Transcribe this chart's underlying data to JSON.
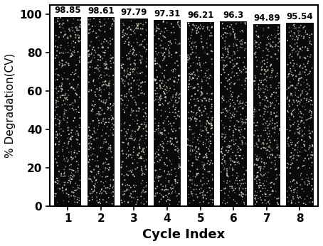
{
  "categories": [
    1,
    2,
    3,
    4,
    5,
    6,
    7,
    8
  ],
  "values": [
    98.85,
    98.61,
    97.79,
    97.31,
    96.21,
    96.3,
    94.89,
    95.54
  ],
  "bar_color": "#0a0a0a",
  "dot_color": "#e0e0d0",
  "title": "",
  "xlabel": "Cycle Index",
  "ylabel": "% Degradation(CV)",
  "ylim": [
    0,
    105
  ],
  "yticks": [
    0,
    20,
    40,
    60,
    80,
    100
  ],
  "xlabel_fontsize": 13,
  "ylabel_fontsize": 11,
  "tick_fontsize": 11,
  "value_fontsize": 8.5,
  "background_color": "#ffffff",
  "bar_width": 0.82,
  "dot_density": 400
}
